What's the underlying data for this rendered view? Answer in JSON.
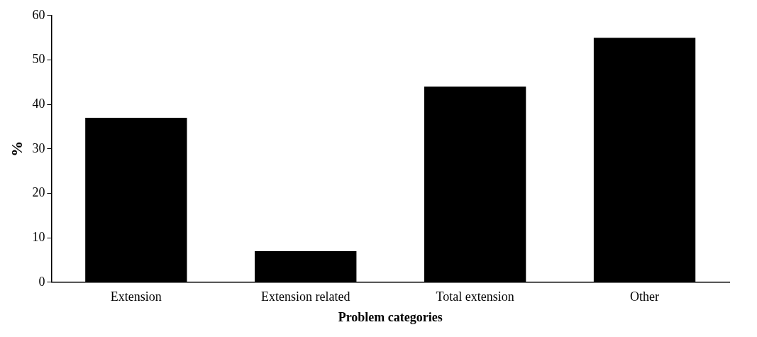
{
  "chart_data": {
    "type": "bar",
    "xlabel": "Problem categories",
    "ylabel": "%",
    "categories": [
      "Extension",
      "Extension related",
      "Total extension",
      "Other"
    ],
    "values": [
      37,
      7,
      44,
      55
    ],
    "color": "#000000",
    "ylim": [
      0,
      60
    ],
    "yticks": [
      0,
      10,
      20,
      30,
      40,
      50,
      60
    ],
    "grid": false,
    "legend": false
  }
}
